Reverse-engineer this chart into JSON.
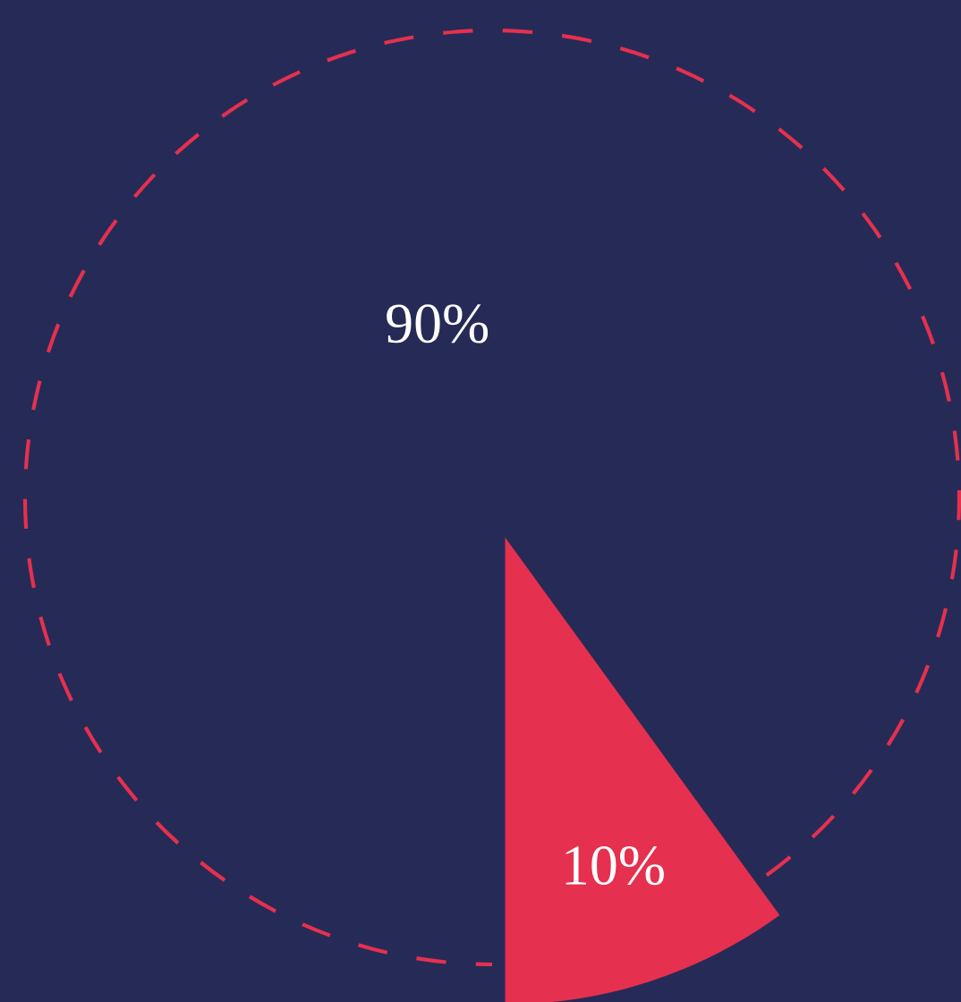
{
  "chart_data": {
    "type": "pie",
    "categories": [
      null,
      null
    ],
    "values": [
      90,
      10
    ],
    "colors": [
      "#252b56",
      "#e5304f"
    ],
    "value_labels": [
      "90%",
      "10%"
    ]
  }
}
